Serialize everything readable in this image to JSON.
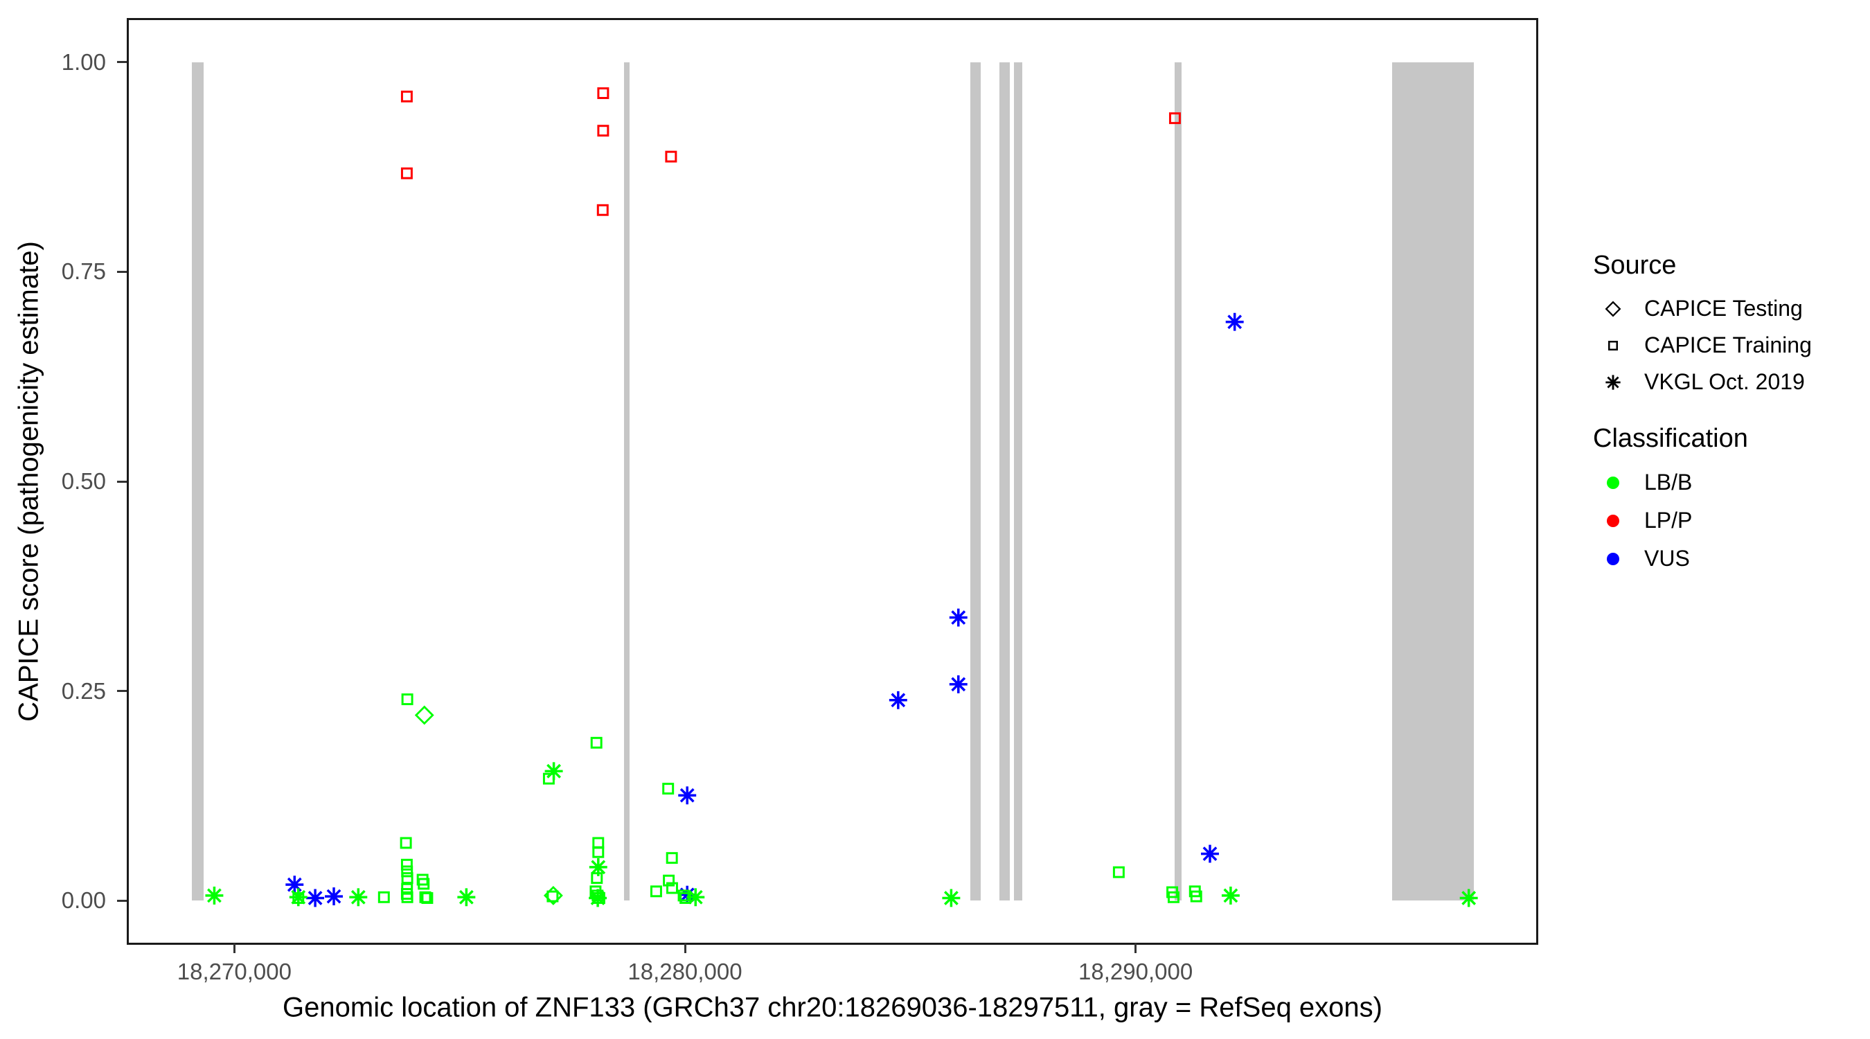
{
  "figure": {
    "legend": {
      "source": {
        "title": "Source",
        "items": [
          {
            "label": "CAPICE Testing",
            "shape": "diamond"
          },
          {
            "label": "CAPICE Training",
            "shape": "square"
          },
          {
            "label": "VKGL Oct. 2019",
            "shape": "asterisk"
          }
        ]
      },
      "classification": {
        "title": "Classification",
        "items": [
          {
            "label": "LB/B",
            "color": "#00FF00"
          },
          {
            "label": "LP/P",
            "color": "#FF0000"
          },
          {
            "label": "VUS",
            "color": "#0000FF"
          }
        ]
      }
    }
  },
  "chart_data": {
    "type": "scatter",
    "title": "",
    "xlabel": "Genomic location of ZNF133 (GRCh37 chr20:18269036-18297511, gray = RefSeq exons)",
    "ylabel": "CAPICE score (pathogenicity estimate)",
    "xlim": [
      18267612,
      18298935
    ],
    "ylim": [
      -0.0525,
      1.0525
    ],
    "grid": "off",
    "legend_position": "right",
    "axis_text_color": "#4d4d4d",
    "exon_color": "#c6c6c6",
    "x_ticks": [
      {
        "value": 18270000,
        "label": "18,270,000"
      },
      {
        "value": 18280000,
        "label": "18,280,000"
      },
      {
        "value": 18290000,
        "label": "18,290,000"
      }
    ],
    "y_ticks": [
      {
        "value": 1.0,
        "label": "1.00"
      },
      {
        "value": 0.75,
        "label": "0.75"
      },
      {
        "value": 0.5,
        "label": "0.50"
      },
      {
        "value": 0.25,
        "label": "0.25"
      },
      {
        "value": 0.0,
        "label": "0.00"
      }
    ],
    "exons": [
      [
        18269063,
        18269324
      ],
      [
        18278644,
        18278767
      ],
      [
        18286337,
        18286567
      ],
      [
        18286982,
        18287212
      ],
      [
        18287304,
        18287488
      ],
      [
        18290866,
        18291027
      ],
      [
        18295690,
        18297511
      ]
    ],
    "shape_by_source": {
      "CAPICE Testing": "diamond",
      "CAPICE Training": "square",
      "VKGL Oct. 2019": "asterisk"
    },
    "color_by_class": {
      "LB/B": "#00FF00",
      "LP/P": "#FF0000",
      "VUS": "#0000FF"
    },
    "points": [
      {
        "x": 18273800,
        "y": 0.961,
        "source": "CAPICE Training",
        "cls": "LP/P"
      },
      {
        "x": 18273800,
        "y": 0.869,
        "source": "CAPICE Training",
        "cls": "LP/P"
      },
      {
        "x": 18278170,
        "y": 0.965,
        "source": "CAPICE Training",
        "cls": "LP/P"
      },
      {
        "x": 18278170,
        "y": 0.92,
        "source": "CAPICE Training",
        "cls": "LP/P"
      },
      {
        "x": 18278160,
        "y": 0.825,
        "source": "CAPICE Training",
        "cls": "LP/P"
      },
      {
        "x": 18279680,
        "y": 0.889,
        "source": "CAPICE Training",
        "cls": "LP/P"
      },
      {
        "x": 18290895,
        "y": 0.935,
        "source": "CAPICE Training",
        "cls": "LP/P"
      },
      {
        "x": 18271300,
        "y": 0.017,
        "source": "VKGL Oct. 2019",
        "cls": "VUS"
      },
      {
        "x": 18271760,
        "y": 0.001,
        "source": "VKGL Oct. 2019",
        "cls": "VUS"
      },
      {
        "x": 18272175,
        "y": 0.003,
        "source": "VKGL Oct. 2019",
        "cls": "VUS"
      },
      {
        "x": 18280040,
        "y": 0.124,
        "source": "VKGL Oct. 2019",
        "cls": "VUS"
      },
      {
        "x": 18280040,
        "y": 0.005,
        "source": "VKGL Oct. 2019",
        "cls": "VUS"
      },
      {
        "x": 18284735,
        "y": 0.238,
        "source": "VKGL Oct. 2019",
        "cls": "VUS"
      },
      {
        "x": 18286075,
        "y": 0.337,
        "source": "VKGL Oct. 2019",
        "cls": "VUS"
      },
      {
        "x": 18286075,
        "y": 0.257,
        "source": "VKGL Oct. 2019",
        "cls": "VUS"
      },
      {
        "x": 18291675,
        "y": 0.054,
        "source": "VKGL Oct. 2019",
        "cls": "VUS"
      },
      {
        "x": 18292225,
        "y": 0.691,
        "source": "VKGL Oct. 2019",
        "cls": "VUS"
      },
      {
        "x": 18274190,
        "y": 0.22,
        "source": "CAPICE Testing",
        "cls": "LB/B"
      },
      {
        "x": 18277060,
        "y": 0.004,
        "source": "CAPICE Testing",
        "cls": "LB/B"
      },
      {
        "x": 18273810,
        "y": 0.239,
        "source": "CAPICE Training",
        "cls": "LB/B"
      },
      {
        "x": 18278020,
        "y": 0.187,
        "source": "CAPICE Training",
        "cls": "LB/B"
      },
      {
        "x": 18276960,
        "y": 0.144,
        "source": "CAPICE Training",
        "cls": "LB/B"
      },
      {
        "x": 18279615,
        "y": 0.132,
        "source": "CAPICE Training",
        "cls": "LB/B"
      },
      {
        "x": 18273780,
        "y": 0.067,
        "source": "CAPICE Training",
        "cls": "LB/B"
      },
      {
        "x": 18278060,
        "y": 0.067,
        "source": "CAPICE Training",
        "cls": "LB/B"
      },
      {
        "x": 18278060,
        "y": 0.056,
        "source": "CAPICE Training",
        "cls": "LB/B"
      },
      {
        "x": 18279700,
        "y": 0.049,
        "source": "CAPICE Training",
        "cls": "LB/B"
      },
      {
        "x": 18273800,
        "y": 0.041,
        "source": "CAPICE Training",
        "cls": "LB/B"
      },
      {
        "x": 18273805,
        "y": 0.033,
        "source": "CAPICE Training",
        "cls": "LB/B"
      },
      {
        "x": 18289645,
        "y": 0.032,
        "source": "CAPICE Training",
        "cls": "LB/B"
      },
      {
        "x": 18273810,
        "y": 0.025,
        "source": "CAPICE Training",
        "cls": "LB/B"
      },
      {
        "x": 18278030,
        "y": 0.025,
        "source": "CAPICE Training",
        "cls": "LB/B"
      },
      {
        "x": 18274150,
        "y": 0.023,
        "source": "CAPICE Training",
        "cls": "LB/B"
      },
      {
        "x": 18279630,
        "y": 0.022,
        "source": "CAPICE Training",
        "cls": "LB/B"
      },
      {
        "x": 18274175,
        "y": 0.018,
        "source": "CAPICE Training",
        "cls": "LB/B"
      },
      {
        "x": 18279705,
        "y": 0.013,
        "source": "CAPICE Training",
        "cls": "LB/B"
      },
      {
        "x": 18273805,
        "y": 0.012,
        "source": "CAPICE Training",
        "cls": "LB/B"
      },
      {
        "x": 18279350,
        "y": 0.009,
        "source": "CAPICE Training",
        "cls": "LB/B"
      },
      {
        "x": 18278000,
        "y": 0.009,
        "source": "CAPICE Training",
        "cls": "LB/B"
      },
      {
        "x": 18273800,
        "y": 0.006,
        "source": "CAPICE Training",
        "cls": "LB/B"
      },
      {
        "x": 18273810,
        "y": 0.002,
        "source": "CAPICE Training",
        "cls": "LB/B"
      },
      {
        "x": 18273290,
        "y": 0.002,
        "source": "CAPICE Training",
        "cls": "LB/B"
      },
      {
        "x": 18274210,
        "y": 0.002,
        "source": "CAPICE Training",
        "cls": "LB/B"
      },
      {
        "x": 18274255,
        "y": 0.001,
        "source": "CAPICE Training",
        "cls": "LB/B"
      },
      {
        "x": 18271385,
        "y": 0.001,
        "source": "CAPICE Training",
        "cls": "LB/B"
      },
      {
        "x": 18277045,
        "y": 0.003,
        "source": "CAPICE Training",
        "cls": "LB/B"
      },
      {
        "x": 18278045,
        "y": 0.004,
        "source": "CAPICE Training",
        "cls": "LB/B"
      },
      {
        "x": 18278085,
        "y": 0.001,
        "source": "CAPICE Training",
        "cls": "LB/B"
      },
      {
        "x": 18279960,
        "y": 0.004,
        "source": "CAPICE Training",
        "cls": "LB/B"
      },
      {
        "x": 18280000,
        "y": 0.001,
        "source": "CAPICE Training",
        "cls": "LB/B"
      },
      {
        "x": 18290835,
        "y": 0.008,
        "source": "CAPICE Training",
        "cls": "LB/B"
      },
      {
        "x": 18290865,
        "y": 0.002,
        "source": "CAPICE Training",
        "cls": "LB/B"
      },
      {
        "x": 18291340,
        "y": 0.009,
        "source": "CAPICE Training",
        "cls": "LB/B"
      },
      {
        "x": 18291370,
        "y": 0.003,
        "source": "CAPICE Training",
        "cls": "LB/B"
      },
      {
        "x": 18269515,
        "y": 0.004,
        "source": "VKGL Oct. 2019",
        "cls": "LB/B"
      },
      {
        "x": 18271385,
        "y": 0.002,
        "source": "VKGL Oct. 2019",
        "cls": "LB/B"
      },
      {
        "x": 18272720,
        "y": 0.002,
        "source": "VKGL Oct. 2019",
        "cls": "LB/B"
      },
      {
        "x": 18275125,
        "y": 0.002,
        "source": "VKGL Oct. 2019",
        "cls": "LB/B"
      },
      {
        "x": 18277070,
        "y": 0.153,
        "source": "VKGL Oct. 2019",
        "cls": "LB/B"
      },
      {
        "x": 18278060,
        "y": 0.038,
        "source": "VKGL Oct. 2019",
        "cls": "LB/B"
      },
      {
        "x": 18278050,
        "y": 0.001,
        "source": "VKGL Oct. 2019",
        "cls": "LB/B"
      },
      {
        "x": 18280225,
        "y": 0.002,
        "source": "VKGL Oct. 2019",
        "cls": "LB/B"
      },
      {
        "x": 18285915,
        "y": 0.001,
        "source": "VKGL Oct. 2019",
        "cls": "LB/B"
      },
      {
        "x": 18292135,
        "y": 0.004,
        "source": "VKGL Oct. 2019",
        "cls": "LB/B"
      },
      {
        "x": 18297435,
        "y": 0.001,
        "source": "VKGL Oct. 2019",
        "cls": "LB/B"
      }
    ]
  }
}
